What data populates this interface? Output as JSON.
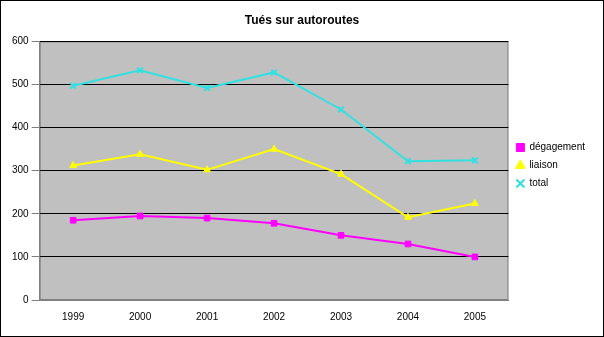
{
  "chart_data": {
    "type": "line",
    "title": "Tués sur autoroutes",
    "categories": [
      "1999",
      "2000",
      "2001",
      "2002",
      "2003",
      "2004",
      "2005"
    ],
    "series": [
      {
        "name": "dégagement",
        "color": "#ff00ff",
        "marker": "square",
        "values": [
          185,
          195,
          190,
          178,
          150,
          130,
          100
        ]
      },
      {
        "name": "liaison",
        "color": "#ffff00",
        "marker": "triangle",
        "values": [
          312,
          338,
          302,
          350,
          292,
          192,
          224
        ]
      },
      {
        "name": "total",
        "color": "#33e0e0",
        "marker": "cross",
        "values": [
          497,
          533,
          492,
          528,
          442,
          322,
          324
        ]
      }
    ],
    "ylim": [
      0,
      600
    ],
    "yticks": [
      0,
      100,
      200,
      300,
      400,
      500,
      600
    ],
    "grid": true,
    "legend": "right"
  }
}
